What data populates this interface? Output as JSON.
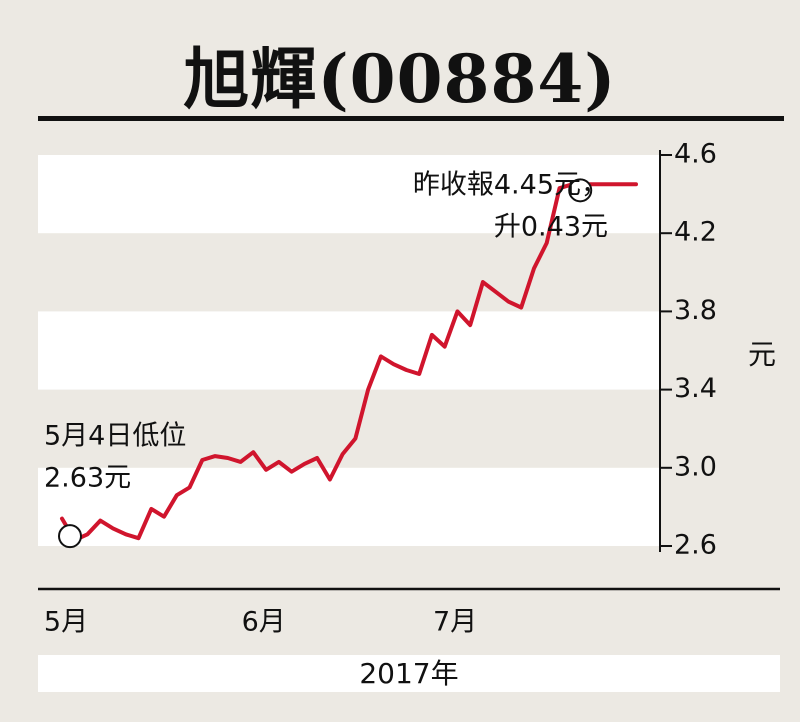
{
  "title": "旭輝(00884)",
  "chart_data": {
    "type": "line",
    "title": "旭輝(00884)",
    "ylabel": "元",
    "xlabel": "2017年",
    "ylim": [
      2.5,
      4.7
    ],
    "yticks": [
      2.6,
      3.0,
      3.4,
      3.8,
      4.2,
      4.6
    ],
    "ytick_labels": [
      "2.6",
      "3.0",
      "3.4",
      "3.8",
      "4.2",
      "4.6"
    ],
    "xlim": [
      0,
      90
    ],
    "xticks": [
      0,
      31,
      61
    ],
    "xtick_labels": [
      "5月",
      "6月",
      "7月"
    ],
    "series": [
      {
        "color": "#d0152d",
        "x": [
          0,
          2,
          4,
          6,
          8,
          10,
          12,
          14,
          16,
          18,
          20,
          22,
          24,
          26,
          28,
          30,
          32,
          34,
          36,
          38,
          40,
          42,
          44,
          46,
          48,
          50,
          52,
          54,
          56,
          58,
          60,
          62,
          64,
          66,
          68,
          70,
          72,
          74,
          76,
          78,
          80,
          82,
          84,
          86,
          88,
          90
        ],
        "values": [
          2.74,
          2.63,
          2.66,
          2.73,
          2.69,
          2.66,
          2.64,
          2.79,
          2.75,
          2.86,
          2.9,
          3.04,
          3.06,
          3.05,
          3.03,
          3.08,
          2.99,
          3.03,
          2.98,
          3.02,
          3.05,
          2.94,
          3.07,
          3.15,
          3.4,
          3.57,
          3.53,
          3.5,
          3.48,
          3.68,
          3.62,
          3.8,
          3.73,
          3.95,
          3.9,
          3.85,
          3.82,
          4.02,
          4.15,
          4.43,
          4.45,
          4.45,
          4.45,
          4.45,
          4.45,
          4.45
        ]
      }
    ],
    "annotations": [
      {
        "lines": [
          "5月4日低位",
          "2.63元"
        ],
        "x": 0,
        "y": 2.63
      },
      {
        "lines": [
          "昨收報4.45元，",
          "升0.43元"
        ],
        "x": 80,
        "y": 4.45
      }
    ],
    "grid": "alternating horizontal bands",
    "year_label": "2017年"
  }
}
